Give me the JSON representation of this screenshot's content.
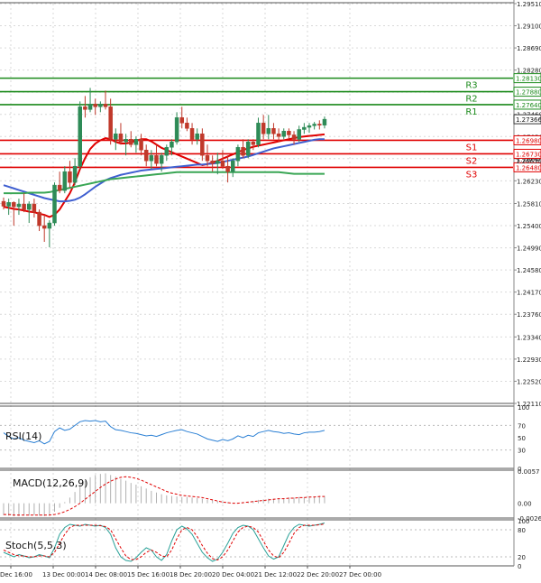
{
  "chart_data": {
    "type": "candlestick",
    "colors": {
      "up": "#2e8b57",
      "down": "#c0392b",
      "resistance": "#1b8a1b",
      "support": "#e00000",
      "sma_red": "#e00000",
      "sma_blue": "#3f5fd0",
      "sma_green": "#3aa655",
      "indicator_line": "#2a7fd4",
      "signal_dash": "#e00000",
      "grid": "#d9d9d9",
      "price_tag_bg": "#ffffff"
    },
    "price_axis": {
      "ylim": [
        1.2211,
        1.2951
      ],
      "ticks": [
        "1.29510",
        "1.29100",
        "1.28690",
        "1.28280",
        "1.27870",
        "1.27460",
        "1.27050",
        "1.26640",
        "1.26230",
        "1.25810",
        "1.25400",
        "1.24990",
        "1.24580",
        "1.24170",
        "1.23760",
        "1.23340",
        "1.22930",
        "1.22520",
        "1.22110"
      ]
    },
    "levels": [
      {
        "name": "R3",
        "value": 1.2813,
        "tag": "1.28130",
        "kind": "resistance"
      },
      {
        "name": "R2",
        "value": 1.2788,
        "tag": "1.27880",
        "kind": "resistance"
      },
      {
        "name": "R1",
        "value": 1.2764,
        "tag": "1.27640",
        "kind": "resistance"
      },
      {
        "name": "S1",
        "value": 1.2698,
        "tag": "1.26980",
        "kind": "support"
      },
      {
        "name": "S2",
        "value": 1.2673,
        "tag": "1.26730",
        "kind": "support"
      },
      {
        "name": "S3",
        "value": 1.2648,
        "tag": "1.26480",
        "kind": "support"
      }
    ],
    "current_price": {
      "value": 1.2737,
      "tag": "1.27366"
    },
    "extra_tag": "1.26630",
    "x_labels": [
      "Dec 16:00",
      "13 Dec 00:00",
      "14 Dec 08:00",
      "15 Dec 16:00",
      "18 Dec 20:00",
      "20 Dec 04:00",
      "21 Dec 12:00",
      "22 Dec 20:00",
      "27 Dec 00:00"
    ],
    "candles": [
      {
        "o": 1.2585,
        "h": 1.2592,
        "l": 1.257,
        "c": 1.2576
      },
      {
        "o": 1.2576,
        "h": 1.259,
        "l": 1.256,
        "c": 1.2583
      },
      {
        "o": 1.2583,
        "h": 1.2585,
        "l": 1.254,
        "c": 1.2575
      },
      {
        "o": 1.2575,
        "h": 1.259,
        "l": 1.256,
        "c": 1.258
      },
      {
        "o": 1.258,
        "h": 1.26,
        "l": 1.2565,
        "c": 1.257
      },
      {
        "o": 1.257,
        "h": 1.2585,
        "l": 1.2545,
        "c": 1.258
      },
      {
        "o": 1.258,
        "h": 1.259,
        "l": 1.2555,
        "c": 1.2565
      },
      {
        "o": 1.2565,
        "h": 1.257,
        "l": 1.253,
        "c": 1.254
      },
      {
        "o": 1.254,
        "h": 1.256,
        "l": 1.251,
        "c": 1.2535
      },
      {
        "o": 1.2535,
        "h": 1.255,
        "l": 1.25,
        "c": 1.2545
      },
      {
        "o": 1.2545,
        "h": 1.262,
        "l": 1.254,
        "c": 1.2615
      },
      {
        "o": 1.2615,
        "h": 1.264,
        "l": 1.26,
        "c": 1.2605
      },
      {
        "o": 1.2605,
        "h": 1.265,
        "l": 1.26,
        "c": 1.264
      },
      {
        "o": 1.264,
        "h": 1.266,
        "l": 1.261,
        "c": 1.262
      },
      {
        "o": 1.262,
        "h": 1.2665,
        "l": 1.2615,
        "c": 1.265
      },
      {
        "o": 1.265,
        "h": 1.277,
        "l": 1.2645,
        "c": 1.276
      },
      {
        "o": 1.276,
        "h": 1.278,
        "l": 1.274,
        "c": 1.2755
      },
      {
        "o": 1.2755,
        "h": 1.2795,
        "l": 1.275,
        "c": 1.2765
      },
      {
        "o": 1.2765,
        "h": 1.2775,
        "l": 1.2745,
        "c": 1.276
      },
      {
        "o": 1.276,
        "h": 1.277,
        "l": 1.275,
        "c": 1.2765
      },
      {
        "o": 1.2765,
        "h": 1.279,
        "l": 1.2755,
        "c": 1.276
      },
      {
        "o": 1.276,
        "h": 1.2775,
        "l": 1.269,
        "c": 1.27
      },
      {
        "o": 1.27,
        "h": 1.272,
        "l": 1.268,
        "c": 1.271
      },
      {
        "o": 1.271,
        "h": 1.273,
        "l": 1.269,
        "c": 1.2695
      },
      {
        "o": 1.2695,
        "h": 1.271,
        "l": 1.267,
        "c": 1.27
      },
      {
        "o": 1.27,
        "h": 1.2715,
        "l": 1.2685,
        "c": 1.269
      },
      {
        "o": 1.269,
        "h": 1.2705,
        "l": 1.2675,
        "c": 1.27
      },
      {
        "o": 1.27,
        "h": 1.271,
        "l": 1.267,
        "c": 1.268
      },
      {
        "o": 1.268,
        "h": 1.269,
        "l": 1.265,
        "c": 1.266
      },
      {
        "o": 1.266,
        "h": 1.268,
        "l": 1.2645,
        "c": 1.267
      },
      {
        "o": 1.267,
        "h": 1.269,
        "l": 1.265,
        "c": 1.2655
      },
      {
        "o": 1.2655,
        "h": 1.2675,
        "l": 1.264,
        "c": 1.267
      },
      {
        "o": 1.267,
        "h": 1.269,
        "l": 1.266,
        "c": 1.2685
      },
      {
        "o": 1.2685,
        "h": 1.27,
        "l": 1.267,
        "c": 1.2695
      },
      {
        "o": 1.2695,
        "h": 1.275,
        "l": 1.269,
        "c": 1.274
      },
      {
        "o": 1.274,
        "h": 1.276,
        "l": 1.272,
        "c": 1.273
      },
      {
        "o": 1.273,
        "h": 1.274,
        "l": 1.2715,
        "c": 1.272
      },
      {
        "o": 1.272,
        "h": 1.273,
        "l": 1.269,
        "c": 1.27
      },
      {
        "o": 1.27,
        "h": 1.272,
        "l": 1.269,
        "c": 1.271
      },
      {
        "o": 1.271,
        "h": 1.272,
        "l": 1.266,
        "c": 1.267
      },
      {
        "o": 1.267,
        "h": 1.269,
        "l": 1.265,
        "c": 1.266
      },
      {
        "o": 1.266,
        "h": 1.267,
        "l": 1.264,
        "c": 1.2655
      },
      {
        "o": 1.2655,
        "h": 1.2675,
        "l": 1.2635,
        "c": 1.266
      },
      {
        "o": 1.266,
        "h": 1.268,
        "l": 1.2645,
        "c": 1.265
      },
      {
        "o": 1.265,
        "h": 1.267,
        "l": 1.262,
        "c": 1.264
      },
      {
        "o": 1.264,
        "h": 1.2665,
        "l": 1.263,
        "c": 1.266
      },
      {
        "o": 1.266,
        "h": 1.269,
        "l": 1.265,
        "c": 1.2685
      },
      {
        "o": 1.2685,
        "h": 1.27,
        "l": 1.2665,
        "c": 1.267
      },
      {
        "o": 1.267,
        "h": 1.27,
        "l": 1.2665,
        "c": 1.2695
      },
      {
        "o": 1.2695,
        "h": 1.27,
        "l": 1.268,
        "c": 1.269
      },
      {
        "o": 1.269,
        "h": 1.274,
        "l": 1.2685,
        "c": 1.273
      },
      {
        "o": 1.273,
        "h": 1.2745,
        "l": 1.27,
        "c": 1.271
      },
      {
        "o": 1.271,
        "h": 1.2745,
        "l": 1.27,
        "c": 1.272
      },
      {
        "o": 1.272,
        "h": 1.273,
        "l": 1.27,
        "c": 1.271
      },
      {
        "o": 1.271,
        "h": 1.272,
        "l": 1.2695,
        "c": 1.2705
      },
      {
        "o": 1.2705,
        "h": 1.272,
        "l": 1.27,
        "c": 1.2715
      },
      {
        "o": 1.2715,
        "h": 1.272,
        "l": 1.27,
        "c": 1.2708
      },
      {
        "o": 1.2708,
        "h": 1.2715,
        "l": 1.269,
        "c": 1.27
      },
      {
        "o": 1.27,
        "h": 1.2725,
        "l": 1.2695,
        "c": 1.2718
      },
      {
        "o": 1.2718,
        "h": 1.273,
        "l": 1.271,
        "c": 1.2722
      },
      {
        "o": 1.2722,
        "h": 1.273,
        "l": 1.2712,
        "c": 1.2725
      },
      {
        "o": 1.2725,
        "h": 1.2732,
        "l": 1.2718,
        "c": 1.2728
      },
      {
        "o": 1.2728,
        "h": 1.2735,
        "l": 1.2718,
        "c": 1.2726
      },
      {
        "o": 1.2726,
        "h": 1.2742,
        "l": 1.272,
        "c": 1.2737
      }
    ],
    "moving_averages": [
      {
        "color": "#e00000",
        "values": [
          1.2575,
          1.2573,
          1.2571,
          1.257,
          1.2568,
          1.2566,
          1.2565,
          1.2562,
          1.256,
          1.2556,
          1.256,
          1.257,
          1.2585,
          1.26,
          1.262,
          1.2645,
          1.2665,
          1.2682,
          1.2692,
          1.2698,
          1.2702,
          1.27,
          1.2695,
          1.2692,
          1.2692,
          1.2694,
          1.2697,
          1.27,
          1.27,
          1.2696,
          1.269,
          1.2684,
          1.268,
          1.2676,
          1.2672,
          1.2668,
          1.2664,
          1.266,
          1.2656,
          1.2652,
          1.2654,
          1.2657,
          1.266,
          1.2664,
          1.2668,
          1.2672,
          1.2676,
          1.268,
          1.2683,
          1.2686,
          1.2688,
          1.269,
          1.2692,
          1.2694,
          1.2696,
          1.2698,
          1.27,
          1.2702,
          1.2704,
          1.2705,
          1.2706,
          1.2707,
          1.2708,
          1.2709
        ]
      },
      {
        "color": "#3f5fd0",
        "values": [
          1.2615,
          1.2612,
          1.2609,
          1.2606,
          1.2603,
          1.26,
          1.2597,
          1.2594,
          1.2591,
          1.2589,
          1.2587,
          1.2585,
          1.2585,
          1.2586,
          1.2588,
          1.2592,
          1.2598,
          1.2605,
          1.2612,
          1.2618,
          1.2624,
          1.2628,
          1.2631,
          1.2634,
          1.2636,
          1.2638,
          1.264,
          1.2642,
          1.2643,
          1.2644,
          1.2645,
          1.2646,
          1.2647,
          1.2648,
          1.2649,
          1.265,
          1.2651,
          1.2652,
          1.2653,
          1.2653,
          1.2654,
          1.2655,
          1.2656,
          1.2658,
          1.266,
          1.2662,
          1.2664,
          1.2666,
          1.2668,
          1.2671,
          1.2674,
          1.2677,
          1.268,
          1.2683,
          1.2685,
          1.2687,
          1.2689,
          1.2691,
          1.2693,
          1.2695,
          1.2697,
          1.2699,
          1.27,
          1.27
        ]
      },
      {
        "color": "#3aa655",
        "values": [
          1.26,
          1.26,
          1.26,
          1.26,
          1.26,
          1.2601,
          1.2601,
          1.2601,
          1.2601,
          1.2602,
          1.2604,
          1.2606,
          1.2608,
          1.261,
          1.2612,
          1.2614,
          1.2616,
          1.2618,
          1.262,
          1.2622,
          1.2624,
          1.2626,
          1.2627,
          1.2628,
          1.2629,
          1.263,
          1.2631,
          1.2632,
          1.2633,
          1.2634,
          1.2635,
          1.2636,
          1.2637,
          1.2638,
          1.2639,
          1.2639,
          1.2639,
          1.2639,
          1.2639,
          1.2639,
          1.2639,
          1.2639,
          1.2639,
          1.2639,
          1.2639,
          1.2639,
          1.2639,
          1.2639,
          1.2639,
          1.2639,
          1.2639,
          1.2639,
          1.2639,
          1.2639,
          1.2639,
          1.2638,
          1.2637,
          1.2636,
          1.2636,
          1.2636,
          1.2636,
          1.2636,
          1.2636,
          1.2636
        ]
      }
    ],
    "rsi": {
      "label": "RSI(14)",
      "ylim": [
        0,
        100
      ],
      "ticks": [
        "100",
        "70",
        "50",
        "30",
        "0"
      ],
      "levels": [
        70,
        30
      ],
      "values": [
        58,
        52,
        48,
        50,
        46,
        44,
        42,
        45,
        40,
        44,
        60,
        66,
        62,
        64,
        70,
        76,
        78,
        77,
        78,
        76,
        77,
        68,
        63,
        62,
        60,
        58,
        57,
        55,
        53,
        54,
        52,
        55,
        58,
        60,
        62,
        63,
        60,
        58,
        56,
        52,
        48,
        46,
        44,
        47,
        45,
        48,
        53,
        50,
        54,
        52,
        58,
        60,
        62,
        60,
        59,
        57,
        58,
        56,
        55,
        58,
        59,
        59,
        60,
        62
      ]
    },
    "macd": {
      "label": "MACD(12,26,9)",
      "ylim": [
        -0.00262,
        0.0057
      ],
      "ticks": [
        "0.0057",
        "0.00",
        "-0.00262"
      ],
      "histogram": [
        -0.0021,
        -0.0022,
        -0.0023,
        -0.0023,
        -0.0022,
        -0.0022,
        -0.0021,
        -0.0022,
        -0.0023,
        -0.0022,
        -0.0015,
        -0.0008,
        0.0002,
        0.001,
        0.002,
        0.0032,
        0.004,
        0.0046,
        0.005,
        0.0052,
        0.0053,
        0.005,
        0.0047,
        0.0043,
        0.004,
        0.0036,
        0.0033,
        0.003,
        0.0026,
        0.0022,
        0.0019,
        0.0016,
        0.0014,
        0.0013,
        0.0012,
        0.0011,
        0.0011,
        0.001,
        0.0009,
        0.0008,
        0.0006,
        0.0005,
        0.0004,
        0.0003,
        0.0002,
        0.0001,
        0.0001,
        0.0002,
        0.0003,
        0.0004,
        0.0006,
        0.0007,
        0.0008,
        0.0008,
        0.0009,
        0.0009,
        0.001,
        0.001,
        0.0011,
        0.0011,
        0.0012,
        0.0012,
        0.0013,
        0.0013
      ],
      "signal": [
        -0.002,
        -0.002,
        -0.0021,
        -0.0021,
        -0.0021,
        -0.0021,
        -0.0021,
        -0.0021,
        -0.0021,
        -0.0021,
        -0.002,
        -0.0018,
        -0.0015,
        -0.0011,
        -0.0006,
        0.0,
        0.0007,
        0.0014,
        0.0021,
        0.0028,
        0.0034,
        0.0039,
        0.0043,
        0.0046,
        0.0047,
        0.0046,
        0.0044,
        0.0041,
        0.0037,
        0.0033,
        0.0029,
        0.0025,
        0.0021,
        0.0018,
        0.0016,
        0.0014,
        0.0013,
        0.0012,
        0.0011,
        0.001,
        0.0008,
        0.0006,
        0.0004,
        0.0002,
        0.0001,
        0.0,
        0.0,
        0.0001,
        0.0002,
        0.0003,
        0.0004,
        0.0005,
        0.0006,
        0.0007,
        0.0008,
        0.0008,
        0.0009,
        0.0009,
        0.001,
        0.001,
        0.0011,
        0.0011,
        0.0012,
        0.0012
      ]
    },
    "stoch": {
      "label": "Stoch(5,5,3)",
      "ylim": [
        0,
        100
      ],
      "ticks": [
        "100",
        "80",
        "20",
        "0"
      ],
      "levels": [
        80,
        20
      ],
      "k": [
        30,
        25,
        20,
        25,
        22,
        18,
        20,
        25,
        22,
        18,
        40,
        70,
        85,
        92,
        90,
        88,
        92,
        90,
        88,
        90,
        85,
        70,
        40,
        20,
        12,
        10,
        18,
        30,
        40,
        35,
        20,
        12,
        25,
        55,
        80,
        88,
        82,
        70,
        50,
        30,
        18,
        10,
        15,
        30,
        50,
        72,
        85,
        90,
        88,
        80,
        60,
        40,
        22,
        15,
        20,
        45,
        70,
        85,
        92,
        90,
        88,
        90,
        92,
        95
      ],
      "d": [
        35,
        30,
        25,
        22,
        22,
        20,
        20,
        22,
        22,
        20,
        30,
        50,
        70,
        85,
        90,
        90,
        90,
        90,
        90,
        89,
        87,
        80,
        60,
        40,
        22,
        14,
        14,
        20,
        30,
        35,
        30,
        22,
        20,
        35,
        60,
        80,
        85,
        80,
        65,
        45,
        28,
        16,
        13,
        20,
        35,
        55,
        75,
        85,
        88,
        85,
        75,
        55,
        35,
        22,
        18,
        30,
        50,
        72,
        85,
        90,
        90,
        90,
        91,
        93
      ]
    }
  }
}
